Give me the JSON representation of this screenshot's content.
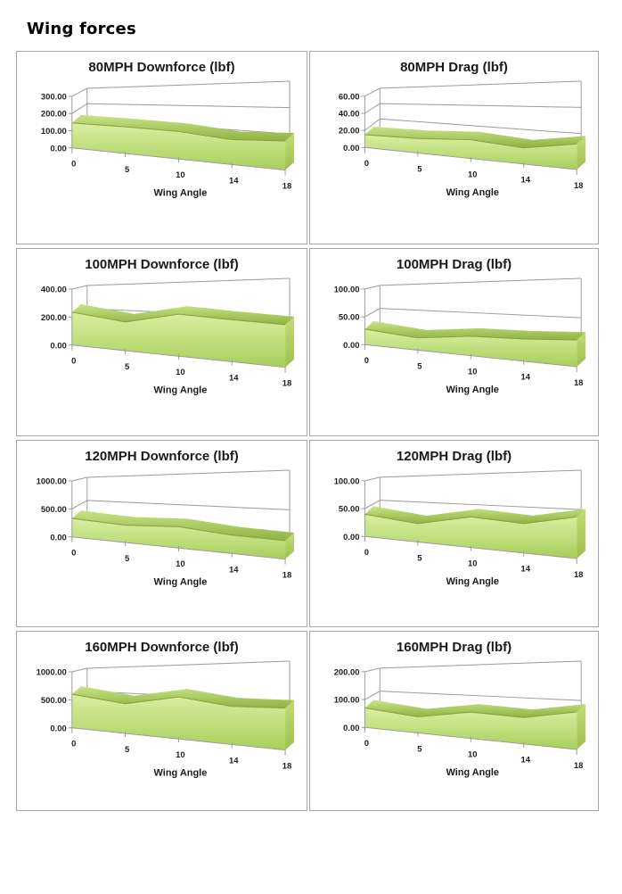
{
  "page": {
    "heading": "Wing forces"
  },
  "colors": {
    "panel_border": "#a6a6a6",
    "grid_line": "#9b9b9b",
    "text": "#1f1f1f",
    "area_face_light": "#d9efa2",
    "area_face_dark": "#a8cf5c",
    "area_top_back": "#c8e487",
    "area_top_front": "#8fb242",
    "area_cap_light": "#c0dd74",
    "area_cap_dark": "#9ec04f",
    "area_edge": "#86a63d"
  },
  "chart_data": [
    {
      "type": "area",
      "title": "80MPH Downforce (lbf)",
      "xlabel": "Wing Angle",
      "categories": [
        0,
        5,
        10,
        14,
        18
      ],
      "values": [
        145,
        155,
        160,
        145,
        170
      ],
      "yticks": [
        0,
        100,
        200,
        300
      ],
      "ylim": [
        0,
        300
      ],
      "tick_format": "0.00",
      "grid": true,
      "legend": "none"
    },
    {
      "type": "area",
      "title": "80MPH Drag (lbf)",
      "xlabel": "Wing Angle",
      "categories": [
        0,
        5,
        10,
        14,
        18
      ],
      "values": [
        15,
        17,
        22,
        19,
        30
      ],
      "yticks": [
        0,
        20,
        40,
        60
      ],
      "ylim": [
        0,
        60
      ],
      "tick_format": "0.00",
      "grid": true,
      "legend": "none"
    },
    {
      "type": "area",
      "title": "100MPH Downforce (lbf)",
      "xlabel": "Wing Angle",
      "categories": [
        0,
        5,
        10,
        14,
        18
      ],
      "values": [
        235,
        205,
        300,
        300,
        305
      ],
      "yticks": [
        0,
        200,
        400
      ],
      "ylim": [
        0,
        400
      ],
      "tick_format": "0.00",
      "grid": true,
      "legend": "none"
    },
    {
      "type": "area",
      "title": "100MPH Drag (lbf)",
      "xlabel": "Wing Angle",
      "categories": [
        0,
        5,
        10,
        14,
        18
      ],
      "values": [
        28,
        22,
        35,
        40,
        48
      ],
      "yticks": [
        0,
        50,
        100
      ],
      "ylim": [
        0,
        100
      ],
      "tick_format": "0.00",
      "grid": true,
      "legend": "none"
    },
    {
      "type": "area",
      "title": "120MPH Downforce (lbf)",
      "xlabel": "Wing Angle",
      "categories": [
        0,
        5,
        10,
        14,
        18
      ],
      "values": [
        330,
        310,
        380,
        330,
        330
      ],
      "yticks": [
        0,
        500,
        1000
      ],
      "ylim": [
        0,
        1000
      ],
      "tick_format": "0.00",
      "grid": true,
      "legend": "none"
    },
    {
      "type": "area",
      "title": "120MPH Drag (lbf)",
      "xlabel": "Wing Angle",
      "categories": [
        0,
        5,
        10,
        14,
        18
      ],
      "values": [
        40,
        33,
        55,
        53,
        75
      ],
      "yticks": [
        0,
        50,
        100
      ],
      "ylim": [
        0,
        100
      ],
      "tick_format": "0.00",
      "grid": true,
      "legend": "none"
    },
    {
      "type": "area",
      "title": "160MPH Downforce (lbf)",
      "xlabel": "Wing Angle",
      "categories": [
        0,
        5,
        10,
        14,
        18
      ],
      "values": [
        600,
        530,
        750,
        680,
        750
      ],
      "yticks": [
        0,
        500,
        1000
      ],
      "ylim": [
        0,
        1000
      ],
      "tick_format": "0.00",
      "grid": true,
      "legend": "none"
    },
    {
      "type": "area",
      "title": "160MPH Drag (lbf)",
      "xlabel": "Wing Angle",
      "categories": [
        0,
        5,
        10,
        14,
        18
      ],
      "values": [
        70,
        58,
        95,
        95,
        135
      ],
      "yticks": [
        0,
        100,
        200
      ],
      "ylim": [
        0,
        200
      ],
      "tick_format": "0.00",
      "grid": true,
      "legend": "none"
    }
  ]
}
